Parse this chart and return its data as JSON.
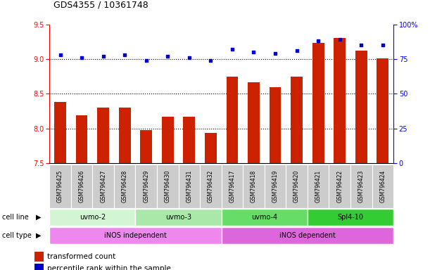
{
  "title": "GDS4355 / 10361748",
  "samples": [
    "GSM796425",
    "GSM796426",
    "GSM796427",
    "GSM796428",
    "GSM796429",
    "GSM796430",
    "GSM796431",
    "GSM796432",
    "GSM796417",
    "GSM796418",
    "GSM796419",
    "GSM796420",
    "GSM796421",
    "GSM796422",
    "GSM796423",
    "GSM796424"
  ],
  "transformed_count": [
    8.38,
    8.19,
    8.3,
    8.3,
    7.98,
    8.17,
    8.17,
    7.94,
    8.75,
    8.67,
    8.6,
    8.75,
    9.23,
    9.3,
    9.12,
    9.01
  ],
  "percentile_rank": [
    78,
    76,
    77,
    78,
    74,
    77,
    76,
    74,
    82,
    80,
    79,
    81,
    88,
    89,
    85,
    85
  ],
  "ylim_left": [
    7.5,
    9.5
  ],
  "ylim_right": [
    0,
    100
  ],
  "yticks_left": [
    7.5,
    8.0,
    8.5,
    9.0,
    9.5
  ],
  "yticks_right": [
    0,
    25,
    50,
    75,
    100
  ],
  "bar_color": "#cc2200",
  "dot_color": "#0000cc",
  "cell_lines": [
    {
      "label": "uvmo-2",
      "start": 0,
      "end": 3,
      "color": "#d4f5d4"
    },
    {
      "label": "uvmo-3",
      "start": 4,
      "end": 7,
      "color": "#aae8aa"
    },
    {
      "label": "uvmo-4",
      "start": 8,
      "end": 11,
      "color": "#66dd66"
    },
    {
      "label": "Spl4-10",
      "start": 12,
      "end": 15,
      "color": "#33cc33"
    }
  ],
  "cell_types": [
    {
      "label": "iNOS independent",
      "start": 0,
      "end": 7,
      "color": "#ee88ee"
    },
    {
      "label": "iNOS dependent",
      "start": 8,
      "end": 15,
      "color": "#dd66dd"
    }
  ],
  "bg_color": "#ffffff",
  "sample_box_color": "#cccccc"
}
